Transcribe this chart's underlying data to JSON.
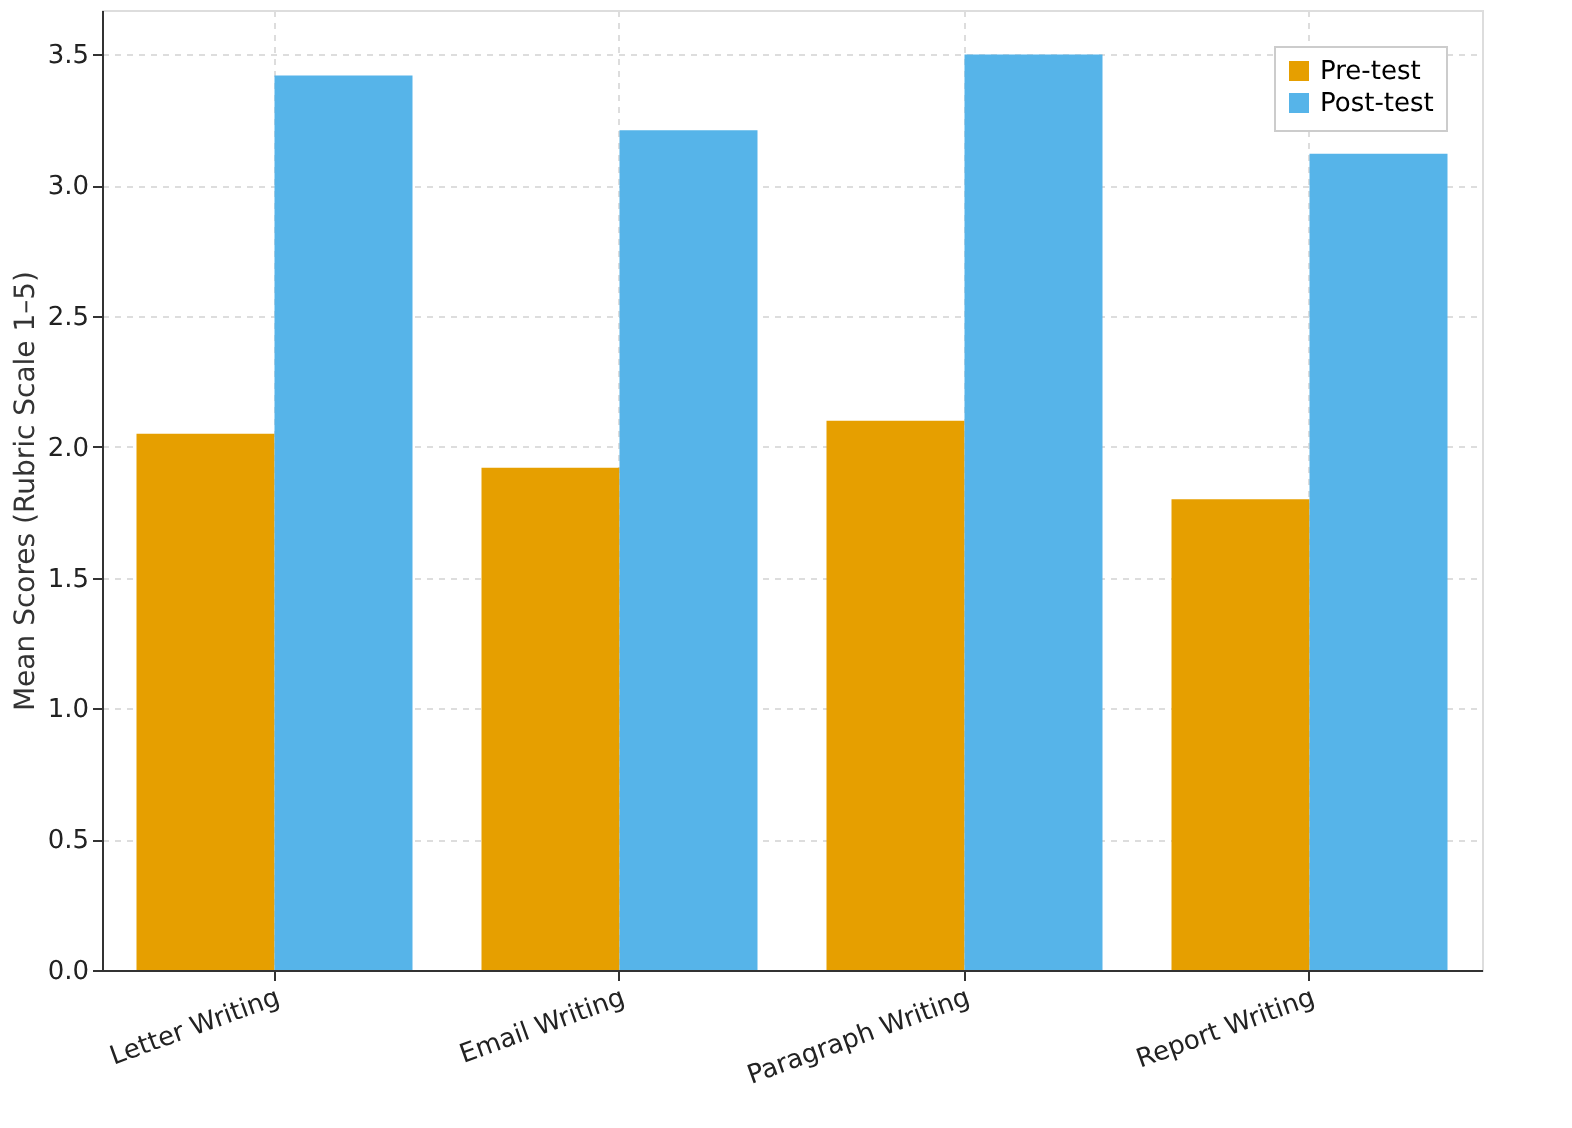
{
  "chart_data": {
    "type": "bar",
    "ylabel": "Mean Scores (Rubric Scale 1–5)",
    "categories": [
      "Letter Writing",
      "Email Writing",
      "Paragraph Writing",
      "Report Writing"
    ],
    "series": [
      {
        "name": "Pre-test",
        "color": "#e69f00",
        "values": [
          2.05,
          1.92,
          2.1,
          1.8
        ]
      },
      {
        "name": "Post-test",
        "color": "#56b4e9",
        "values": [
          3.42,
          3.21,
          3.5,
          3.12
        ]
      }
    ],
    "ylim": [
      0,
      3.67
    ],
    "yticks": [
      {
        "value": 0,
        "label": "0.0"
      },
      0.5,
      {
        "value": 1,
        "label": "1.0"
      },
      1.5,
      {
        "value": 2,
        "label": "2.0"
      },
      2.5,
      {
        "value": 3,
        "label": "3.0"
      },
      3.5
    ],
    "grid": true,
    "legend": "top right"
  }
}
